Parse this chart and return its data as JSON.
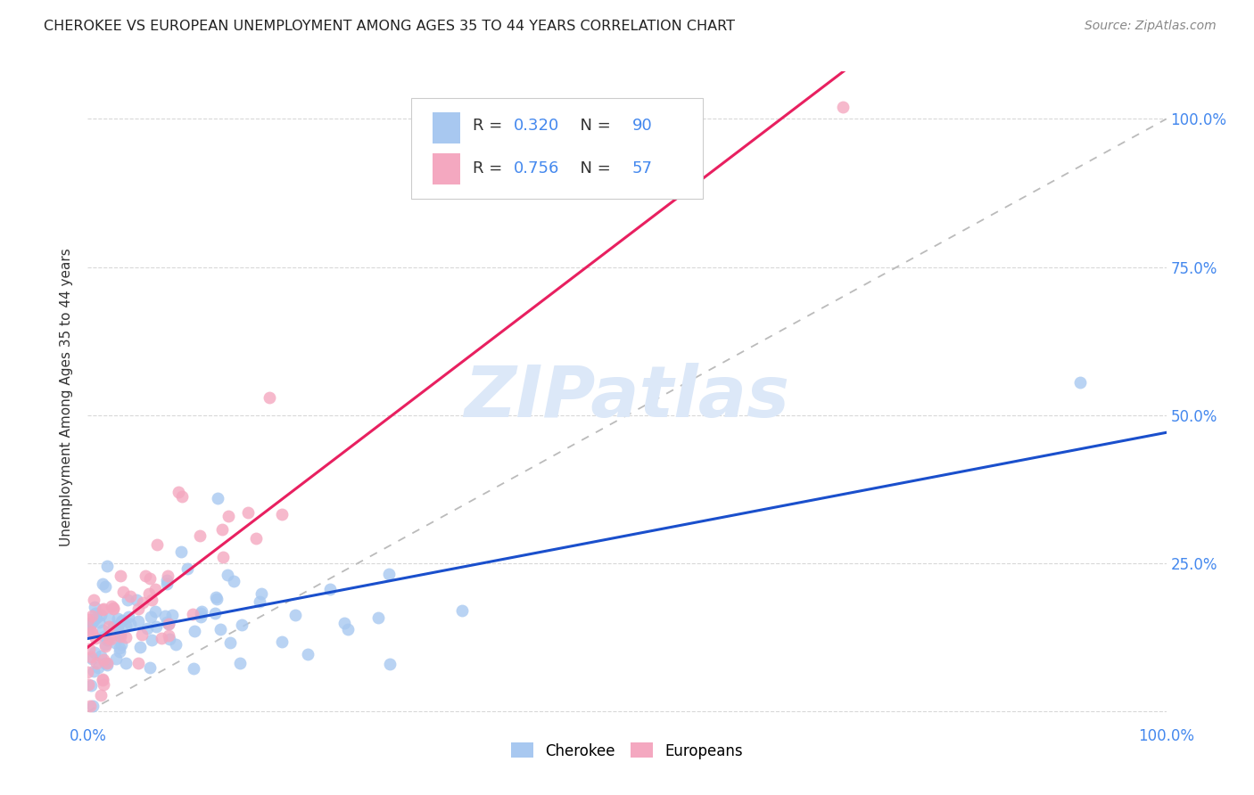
{
  "title": "CHEROKEE VS EUROPEAN UNEMPLOYMENT AMONG AGES 35 TO 44 YEARS CORRELATION CHART",
  "source": "Source: ZipAtlas.com",
  "ylabel": "Unemployment Among Ages 35 to 44 years",
  "xlim": [
    0,
    1
  ],
  "ylim": [
    0,
    1
  ],
  "xticks": [
    0.0,
    0.25,
    0.5,
    0.75,
    1.0
  ],
  "yticks": [
    0.0,
    0.25,
    0.5,
    0.75,
    1.0
  ],
  "xticklabels": [
    "0.0%",
    "",
    "",
    "",
    "100.0%"
  ],
  "yticklabels": [
    "",
    "25.0%",
    "50.0%",
    "75.0%",
    "100.0%"
  ],
  "cherokee_color": "#a8c8f0",
  "european_color": "#f4a8c0",
  "cherokee_R": 0.32,
  "cherokee_N": 90,
  "european_R": 0.756,
  "european_N": 57,
  "trend_cherokee_color": "#1a4fcc",
  "trend_european_color": "#e82060",
  "diagonal_color": "#bbbbbb",
  "background_color": "#ffffff",
  "grid_color": "#d8d8d8",
  "title_color": "#222222",
  "axis_label_color": "#333333",
  "tick_color": "#4488ee",
  "watermark_color": "#dce8f8",
  "legend_border_color": "#cccccc"
}
